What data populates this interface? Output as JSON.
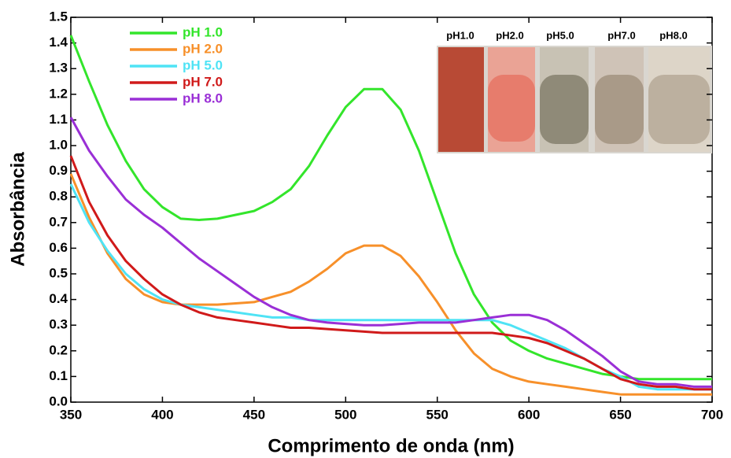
{
  "chart_data": {
    "type": "line",
    "x_label": "Comprimento de onda (nm)",
    "y_label": "Absorbância",
    "x": [
      350,
      360,
      370,
      380,
      390,
      400,
      410,
      420,
      430,
      440,
      450,
      460,
      470,
      480,
      490,
      500,
      510,
      520,
      530,
      540,
      550,
      560,
      570,
      580,
      590,
      600,
      610,
      620,
      630,
      640,
      650,
      660,
      670,
      680,
      690,
      700
    ],
    "series": [
      {
        "name": "pH 1.0",
        "color": "#33e52b",
        "values": [
          1.43,
          1.25,
          1.08,
          0.94,
          0.83,
          0.76,
          0.715,
          0.71,
          0.715,
          0.73,
          0.745,
          0.78,
          0.83,
          0.92,
          1.04,
          1.15,
          1.22,
          1.22,
          1.14,
          0.98,
          0.78,
          0.58,
          0.42,
          0.31,
          0.24,
          0.2,
          0.17,
          0.15,
          0.13,
          0.11,
          0.1,
          0.09,
          0.09,
          0.09,
          0.09,
          0.09
        ]
      },
      {
        "name": "pH 2.0",
        "color": "#f7902a",
        "values": [
          0.89,
          0.72,
          0.58,
          0.48,
          0.42,
          0.39,
          0.38,
          0.38,
          0.38,
          0.385,
          0.39,
          0.41,
          0.43,
          0.47,
          0.52,
          0.58,
          0.61,
          0.61,
          0.57,
          0.49,
          0.39,
          0.28,
          0.19,
          0.13,
          0.1,
          0.08,
          0.07,
          0.06,
          0.05,
          0.04,
          0.03,
          0.03,
          0.03,
          0.03,
          0.03,
          0.03
        ]
      },
      {
        "name": "pH 5.0",
        "color": "#4fe3f5",
        "values": [
          0.85,
          0.7,
          0.59,
          0.5,
          0.44,
          0.4,
          0.38,
          0.37,
          0.36,
          0.35,
          0.34,
          0.33,
          0.33,
          0.32,
          0.32,
          0.32,
          0.32,
          0.32,
          0.32,
          0.32,
          0.32,
          0.32,
          0.32,
          0.32,
          0.3,
          0.27,
          0.24,
          0.21,
          0.17,
          0.13,
          0.1,
          0.06,
          0.05,
          0.05,
          0.05,
          0.05
        ]
      },
      {
        "name": "pH 7.0",
        "color": "#d01a1a",
        "values": [
          0.96,
          0.78,
          0.65,
          0.55,
          0.48,
          0.42,
          0.38,
          0.35,
          0.33,
          0.32,
          0.31,
          0.3,
          0.29,
          0.29,
          0.285,
          0.28,
          0.275,
          0.27,
          0.27,
          0.27,
          0.27,
          0.27,
          0.27,
          0.27,
          0.26,
          0.25,
          0.23,
          0.2,
          0.17,
          0.13,
          0.09,
          0.07,
          0.06,
          0.06,
          0.05,
          0.05
        ]
      },
      {
        "name": "pH 8.0",
        "color": "#9a2fd6",
        "values": [
          1.11,
          0.98,
          0.88,
          0.79,
          0.73,
          0.68,
          0.62,
          0.56,
          0.51,
          0.46,
          0.41,
          0.37,
          0.34,
          0.32,
          0.31,
          0.305,
          0.3,
          0.3,
          0.305,
          0.31,
          0.31,
          0.31,
          0.32,
          0.33,
          0.34,
          0.34,
          0.32,
          0.28,
          0.23,
          0.18,
          0.12,
          0.08,
          0.07,
          0.07,
          0.06,
          0.06
        ]
      }
    ],
    "xlim": [
      350,
      700
    ],
    "xticks": [
      350,
      400,
      450,
      500,
      550,
      600,
      650,
      700
    ],
    "ylim": [
      0,
      1.5
    ],
    "yticks": [
      {
        "value": 0,
        "label": "0.0"
      },
      0.1,
      0.2,
      0.3,
      0.4,
      0.5,
      0.6,
      0.7,
      0.8,
      0.9,
      {
        "value": 1,
        "label": "1.0"
      },
      1.1,
      1.2,
      1.3,
      1.4,
      1.5
    ],
    "grid": false,
    "legend": "upper left",
    "annotations": [
      "pH1.0",
      "pH2.0",
      "pH5.0",
      "pH7.0",
      "pH8.0"
    ]
  }
}
